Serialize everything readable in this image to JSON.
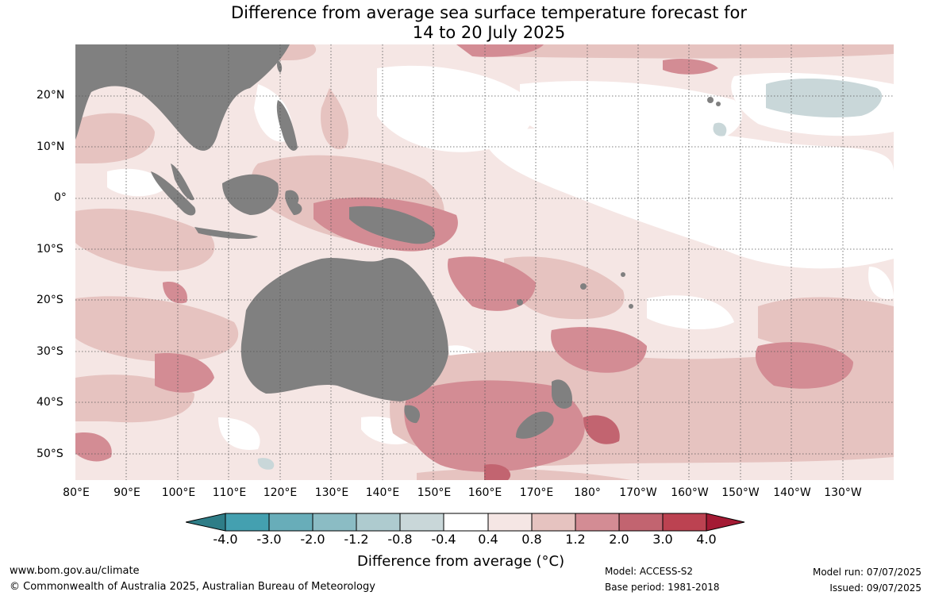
{
  "title": {
    "line1": "Difference from average sea surface temperature forecast for",
    "line2": "14 to 20 July 2025"
  },
  "map": {
    "lat_labels": [
      "20°N",
      "10°N",
      "0°",
      "10°S",
      "20°S",
      "30°S",
      "40°S",
      "50°S"
    ],
    "lon_labels": [
      "80°E",
      "90°E",
      "100°E",
      "110°E",
      "120°E",
      "130°E",
      "140°E",
      "150°E",
      "160°E",
      "170°E",
      "180°",
      "170°W",
      "160°W",
      "150°W",
      "140°W",
      "130°W"
    ],
    "land_color": "#808080",
    "ocean_base_color": "#f5e6e4"
  },
  "colorbar": {
    "title": "Difference from average (°C)",
    "tick_labels": [
      "-4.0",
      "-3.0",
      "-2.0",
      "-1.2",
      "-0.8",
      "-0.4",
      "0.4",
      "0.8",
      "1.2",
      "2.0",
      "3.0",
      "4.0"
    ],
    "colors": [
      "#2e7d87",
      "#44a0b0",
      "#68adb9",
      "#8bbcc4",
      "#aecbcf",
      "#c9d7d9",
      "#ffffff",
      "#f5e6e4",
      "#e6c3c0",
      "#d38c94",
      "#c26470",
      "#bc4251",
      "#a41a34"
    ]
  },
  "footer": {
    "website": "www.bom.gov.au/climate",
    "copyright": "© Commonwealth of Australia 2025, Australian Bureau of Meteorology",
    "model": "Model: ACCESS-S2",
    "base_period": "Base period: 1981-2018",
    "model_run": "Model run: 07/07/2025",
    "issued": "Issued: 09/07/2025"
  }
}
